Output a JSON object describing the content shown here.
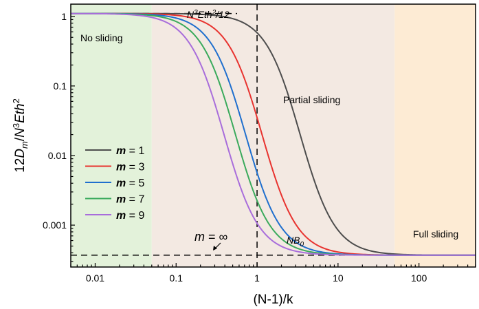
{
  "chart_data": {
    "type": "line",
    "x_scale": "log",
    "y_scale": "log",
    "xlim": [
      0.005,
      500
    ],
    "ylim": [
      0.00025,
      1.5
    ],
    "x_ticks": [
      {
        "value": 0.01,
        "label": "0.01"
      },
      {
        "value": 0.1,
        "label": "0.1"
      },
      {
        "value": 1,
        "label": "1"
      },
      {
        "value": 10,
        "label": "10"
      },
      {
        "value": 100,
        "label": "100"
      }
    ],
    "y_ticks": [
      {
        "value": 0.001,
        "label": "0.001"
      },
      {
        "value": 0.01,
        "label": "0.01"
      },
      {
        "value": 0.1,
        "label": "0.1"
      },
      {
        "value": 1,
        "label": "1"
      }
    ],
    "xlabel": "(N-1)/k",
    "ylabel": "12D_m/N^3Eth^2",
    "regions": [
      {
        "label": "No sliding",
        "x_from": 0.005,
        "x_to": 0.05,
        "color": "#e3f2da"
      },
      {
        "label": "Partial sliding",
        "x_from": 0.05,
        "x_to": 50,
        "color": "#f3e9e2"
      },
      {
        "label": "Full sliding",
        "x_from": 50,
        "x_to": 500,
        "color": "#fdebd4"
      }
    ],
    "reference_lines": {
      "upper": {
        "y": 1.1,
        "label_base": "N",
        "label_sup": "3",
        "label_mid": "Eth",
        "label_sup2": "2",
        "label_end": "/12"
      },
      "lower": {
        "y": 0.00037,
        "label_base": "NB",
        "label_sub": "0"
      },
      "vertical": {
        "x": 1
      }
    },
    "asymptote_label": {
      "text_m": "m",
      "text_rest": " = ∞"
    },
    "series": [
      {
        "name": "m = 1",
        "m": "1",
        "color": "#4d4d4d",
        "x_half": 3.4
      },
      {
        "name": "m = 3",
        "m": "3",
        "color": "#e8332f",
        "x_half": 1.15
      },
      {
        "name": "m = 5",
        "m": "5",
        "color": "#1f6fce",
        "x_half": 0.72
      },
      {
        "name": "m = 7",
        "m": "7",
        "color": "#3aaa5c",
        "x_half": 0.54
      },
      {
        "name": "m = 9",
        "m": "9",
        "color": "#a86ddb",
        "x_half": 0.39
      }
    ],
    "curve_model": {
      "upper_y": 1.1,
      "lower_y": 0.00037,
      "exponent": 2
    }
  }
}
